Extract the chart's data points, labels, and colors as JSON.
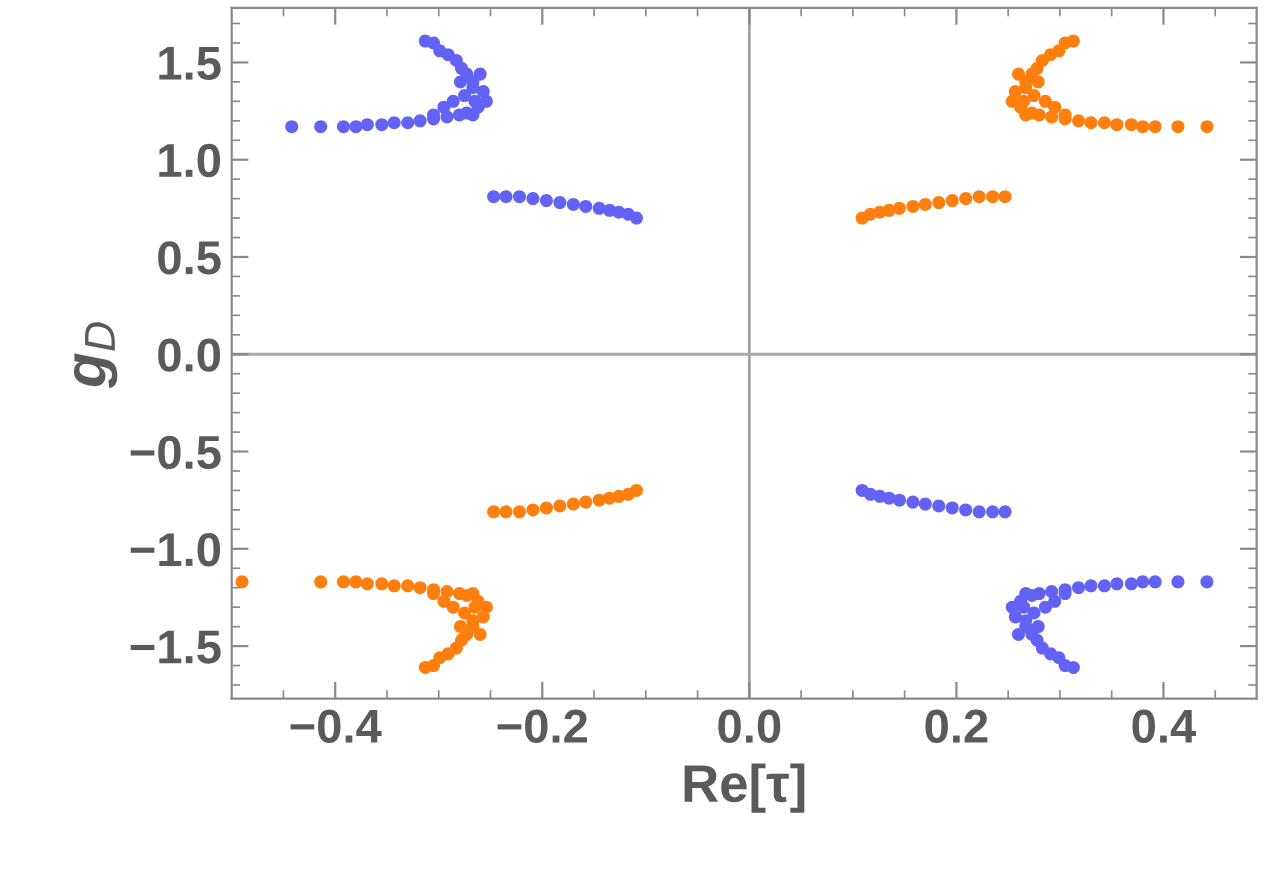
{
  "chart_data": {
    "type": "scatter",
    "xlabel": "Re[τ]",
    "ylabel": "g$_{D}$",
    "xlim": [
      -0.5,
      0.49
    ],
    "ylim": [
      -1.77,
      1.78
    ],
    "xticks": [
      {
        "value": -0.4,
        "label": "−0.4"
      },
      {
        "value": -0.2,
        "label": "−0.2"
      },
      {
        "value": 0,
        "label": "0.0"
      },
      {
        "value": 0.2,
        "label": "0.2"
      },
      {
        "value": 0.4,
        "label": "0.4"
      },
      {
        "value": -0.45,
        "label": null
      },
      {
        "value": -0.35,
        "label": null
      },
      {
        "value": -0.3,
        "label": null
      },
      {
        "value": -0.25,
        "label": null
      },
      {
        "value": -0.15,
        "label": null
      },
      {
        "value": -0.1,
        "label": null
      },
      {
        "value": -0.05,
        "label": null
      },
      {
        "value": 0.05,
        "label": null
      },
      {
        "value": 0.1,
        "label": null
      },
      {
        "value": 0.15,
        "label": null
      },
      {
        "value": 0.25,
        "label": null
      },
      {
        "value": 0.3,
        "label": null
      },
      {
        "value": 0.35,
        "label": null
      },
      {
        "value": 0.45,
        "label": null
      }
    ],
    "yticks": [
      {
        "value": -1.5,
        "label": "−1.5"
      },
      {
        "value": -1.0,
        "label": "−1.0"
      },
      {
        "value": -0.5,
        "label": "−0.5"
      },
      {
        "value": 0,
        "label": "0.0"
      },
      {
        "value": 0.5,
        "label": "0.5"
      },
      {
        "value": 1.0,
        "label": "1.0"
      },
      {
        "value": 1.5,
        "label": "1.5"
      },
      {
        "value": -1.7,
        "label": null
      },
      {
        "value": -1.6,
        "label": null
      },
      {
        "value": -1.4,
        "label": null
      },
      {
        "value": -1.3,
        "label": null
      },
      {
        "value": -1.2,
        "label": null
      },
      {
        "value": -1.1,
        "label": null
      },
      {
        "value": -0.9,
        "label": null
      },
      {
        "value": -0.8,
        "label": null
      },
      {
        "value": -0.7,
        "label": null
      },
      {
        "value": -0.6,
        "label": null
      },
      {
        "value": -0.4,
        "label": null
      },
      {
        "value": -0.3,
        "label": null
      },
      {
        "value": -0.2,
        "label": null
      },
      {
        "value": -0.1,
        "label": null
      },
      {
        "value": 0.1,
        "label": null
      },
      {
        "value": 0.2,
        "label": null
      },
      {
        "value": 0.3,
        "label": null
      },
      {
        "value": 0.4,
        "label": null
      },
      {
        "value": 0.6,
        "label": null
      },
      {
        "value": 0.7,
        "label": null
      },
      {
        "value": 0.8,
        "label": null
      },
      {
        "value": 0.9,
        "label": null
      },
      {
        "value": 1.1,
        "label": null
      },
      {
        "value": 1.2,
        "label": null
      },
      {
        "value": 1.3,
        "label": null
      },
      {
        "value": 1.4,
        "label": null
      },
      {
        "value": 1.6,
        "label": null
      },
      {
        "value": 1.7,
        "label": null
      }
    ],
    "grid": false,
    "legend": false,
    "marker": "circle",
    "ref_lines": [
      {
        "axis": "x",
        "value": 0,
        "color": "#a0a0a0"
      },
      {
        "axis": "y",
        "value": 0,
        "color": "#a8a8a8"
      }
    ],
    "series": [
      {
        "color": "#6262f5",
        "x": [
          -0.442,
          -0.414,
          -0.392,
          -0.38,
          -0.369,
          -0.355,
          -0.343,
          -0.33,
          -0.318,
          -0.305,
          -0.292,
          -0.28,
          -0.273,
          -0.262,
          -0.254,
          -0.313,
          -0.305,
          -0.299,
          -0.291,
          -0.283,
          -0.278,
          -0.273,
          -0.267,
          -0.26,
          -0.267,
          -0.257,
          -0.279,
          -0.286,
          -0.295,
          -0.305,
          -0.267,
          -0.275,
          -0.265,
          -0.247,
          -0.235,
          -0.222,
          -0.209,
          -0.196,
          -0.183,
          -0.17,
          -0.158,
          -0.145,
          -0.135,
          -0.126,
          -0.117,
          -0.109,
          0.442,
          0.414,
          0.392,
          0.38,
          0.369,
          0.355,
          0.343,
          0.33,
          0.318,
          0.305,
          0.292,
          0.28,
          0.273,
          0.262,
          0.254,
          0.313,
          0.305,
          0.299,
          0.291,
          0.283,
          0.278,
          0.273,
          0.267,
          0.26,
          0.267,
          0.257,
          0.279,
          0.286,
          0.295,
          0.305,
          0.267,
          0.275,
          0.265,
          0.247,
          0.235,
          0.222,
          0.209,
          0.196,
          0.183,
          0.17,
          0.158,
          0.145,
          0.135,
          0.126,
          0.117,
          0.109
        ],
        "values": [
          1.17,
          1.17,
          1.17,
          1.17,
          1.18,
          1.18,
          1.19,
          1.19,
          1.2,
          1.21,
          1.22,
          1.23,
          1.24,
          1.27,
          1.3,
          1.61,
          1.6,
          1.56,
          1.54,
          1.51,
          1.47,
          1.44,
          1.4,
          1.44,
          1.37,
          1.35,
          1.4,
          1.3,
          1.27,
          1.23,
          1.23,
          1.33,
          1.3,
          0.81,
          0.81,
          0.81,
          0.8,
          0.79,
          0.78,
          0.77,
          0.76,
          0.75,
          0.74,
          0.73,
          0.72,
          0.7,
          -1.17,
          -1.17,
          -1.17,
          -1.17,
          -1.18,
          -1.18,
          -1.19,
          -1.19,
          -1.2,
          -1.21,
          -1.22,
          -1.23,
          -1.24,
          -1.27,
          -1.3,
          -1.61,
          -1.6,
          -1.56,
          -1.54,
          -1.51,
          -1.47,
          -1.44,
          -1.4,
          -1.44,
          -1.37,
          -1.35,
          -1.4,
          -1.3,
          -1.27,
          -1.23,
          -1.23,
          -1.33,
          -1.3,
          -0.81,
          -0.81,
          -0.81,
          -0.8,
          -0.79,
          -0.78,
          -0.77,
          -0.76,
          -0.75,
          -0.74,
          -0.73,
          -0.72,
          -0.7
        ]
      },
      {
        "color": "#ff7f0e",
        "x": [
          0.442,
          0.414,
          0.392,
          0.38,
          0.369,
          0.355,
          0.343,
          0.33,
          0.318,
          0.305,
          0.292,
          0.28,
          0.273,
          0.262,
          0.254,
          0.313,
          0.305,
          0.299,
          0.291,
          0.283,
          0.278,
          0.273,
          0.267,
          0.26,
          0.267,
          0.257,
          0.279,
          0.286,
          0.295,
          0.305,
          0.267,
          0.275,
          0.265,
          0.247,
          0.235,
          0.222,
          0.209,
          0.196,
          0.183,
          0.17,
          0.158,
          0.145,
          0.135,
          0.126,
          0.117,
          0.109,
          -0.49,
          -0.414,
          -0.392,
          -0.38,
          -0.369,
          -0.355,
          -0.343,
          -0.33,
          -0.318,
          -0.305,
          -0.292,
          -0.28,
          -0.273,
          -0.262,
          -0.254,
          -0.313,
          -0.305,
          -0.299,
          -0.291,
          -0.283,
          -0.278,
          -0.273,
          -0.267,
          -0.26,
          -0.267,
          -0.257,
          -0.279,
          -0.286,
          -0.295,
          -0.305,
          -0.267,
          -0.275,
          -0.265,
          -0.247,
          -0.235,
          -0.222,
          -0.209,
          -0.196,
          -0.183,
          -0.17,
          -0.158,
          -0.145,
          -0.135,
          -0.126,
          -0.117,
          -0.109
        ],
        "values": [
          1.17,
          1.17,
          1.17,
          1.17,
          1.18,
          1.18,
          1.19,
          1.19,
          1.2,
          1.21,
          1.22,
          1.23,
          1.24,
          1.27,
          1.3,
          1.61,
          1.6,
          1.56,
          1.54,
          1.51,
          1.47,
          1.44,
          1.4,
          1.44,
          1.37,
          1.35,
          1.4,
          1.3,
          1.27,
          1.23,
          1.23,
          1.33,
          1.3,
          0.81,
          0.81,
          0.81,
          0.8,
          0.79,
          0.78,
          0.77,
          0.76,
          0.75,
          0.74,
          0.73,
          0.72,
          0.7,
          -1.17,
          -1.17,
          -1.17,
          -1.17,
          -1.18,
          -1.18,
          -1.19,
          -1.19,
          -1.2,
          -1.21,
          -1.22,
          -1.23,
          -1.24,
          -1.27,
          -1.3,
          -1.61,
          -1.6,
          -1.56,
          -1.54,
          -1.51,
          -1.47,
          -1.44,
          -1.4,
          -1.44,
          -1.37,
          -1.35,
          -1.4,
          -1.3,
          -1.27,
          -1.23,
          -1.23,
          -1.33,
          -1.3,
          -0.81,
          -0.81,
          -0.81,
          -0.8,
          -0.79,
          -0.78,
          -0.77,
          -0.76,
          -0.75,
          -0.74,
          -0.73,
          -0.72,
          -0.7
        ]
      }
    ]
  }
}
